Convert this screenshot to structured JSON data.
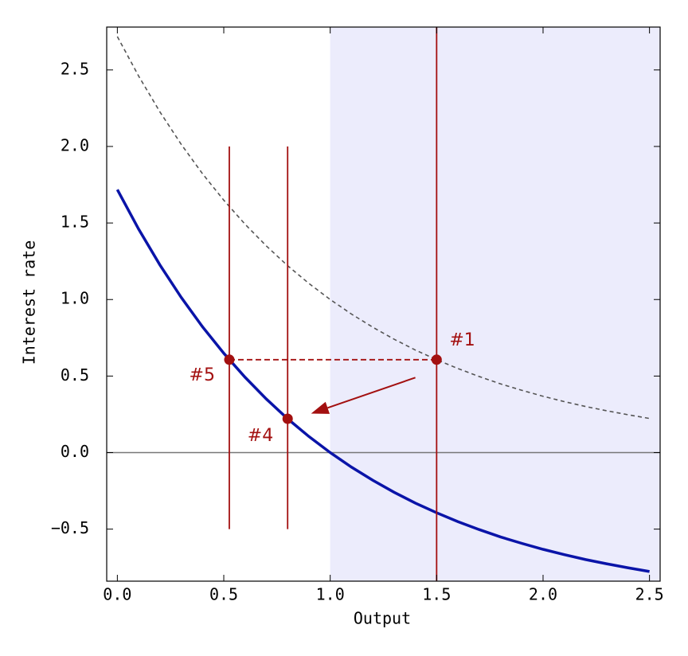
{
  "chart_data": {
    "type": "line",
    "xlabel": "Output",
    "ylabel": "Interest rate",
    "xlim": [
      -0.05,
      2.55
    ],
    "ylim": [
      -0.84,
      2.78
    ],
    "xticks": [
      {
        "value": 0,
        "label": "0.0"
      },
      0.5,
      {
        "value": 1,
        "label": "1.0"
      },
      1.5,
      {
        "value": 2,
        "label": "2.0"
      },
      2.5
    ],
    "yticks": [
      {
        "value": -0.5,
        "label": "−0.5"
      },
      {
        "value": 0,
        "label": "0.0"
      },
      0.5,
      {
        "value": 1,
        "label": "1.0"
      },
      1.5,
      {
        "value": 2,
        "label": "2.0"
      },
      2.5
    ],
    "x": [
      0,
      0.1,
      0.2,
      0.3,
      0.4,
      0.5,
      0.6,
      0.7,
      0.8,
      0.9,
      1.0,
      1.1,
      1.2,
      1.3,
      1.4,
      1.5,
      1.6,
      1.7,
      1.8,
      1.9,
      2.0,
      2.1,
      2.2,
      2.3,
      2.4,
      2.5
    ],
    "series": [
      {
        "color": "#555555",
        "dashed": true,
        "values": [
          2.718,
          2.46,
          2.226,
          2.014,
          1.822,
          1.649,
          1.492,
          1.35,
          1.221,
          1.105,
          1.0,
          0.905,
          0.819,
          0.741,
          0.67,
          0.607,
          0.549,
          0.497,
          0.449,
          0.407,
          0.368,
          0.333,
          0.301,
          0.273,
          0.247,
          0.223
        ]
      },
      {
        "color": "#0a14a8",
        "dashed": false,
        "values": [
          1.718,
          1.46,
          1.226,
          1.014,
          0.822,
          0.649,
          0.492,
          0.35,
          0.221,
          0.105,
          0.0,
          -0.095,
          -0.181,
          -0.259,
          -0.33,
          -0.393,
          -0.451,
          -0.503,
          -0.551,
          -0.593,
          -0.632,
          -0.667,
          -0.699,
          -0.727,
          -0.753,
          -0.777
        ]
      }
    ],
    "shade": {
      "xmin": 1.0,
      "color": "#ececfc"
    },
    "hline": 0,
    "marker_color": "#a31010",
    "vlines": [
      {
        "x": 0.526,
        "ymin": -0.5,
        "ymax": 2.0
      },
      {
        "x": 0.8,
        "ymin": -0.5,
        "ymax": 2.0
      },
      {
        "x": 1.5
      }
    ],
    "hsegment": {
      "y": 0.607,
      "x1": 0.526,
      "x2": 1.5
    },
    "arrow": {
      "x1": 1.4,
      "y1": 0.49,
      "x2": 0.91,
      "y2": 0.255
    },
    "points": [
      {
        "x": 1.5,
        "y": 0.607,
        "label": "#1"
      },
      {
        "x": 0.526,
        "y": 0.607,
        "label": "#5"
      },
      {
        "x": 0.8,
        "y": 0.221,
        "label": "#4"
      }
    ]
  }
}
